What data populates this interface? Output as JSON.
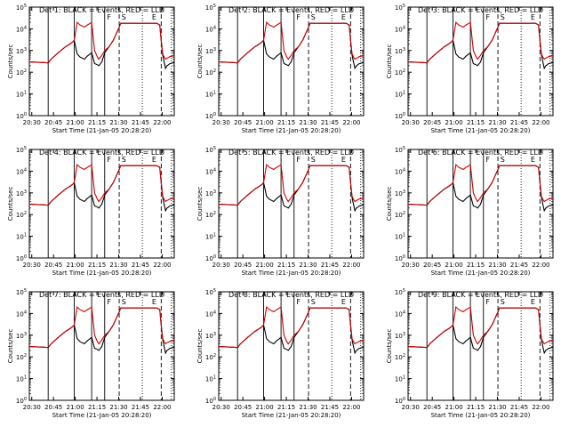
{
  "figure": {
    "plots": [
      {
        "title": "Det 1: BLACK = Events, RED = LLD",
        "row": 0,
        "col": 0
      },
      {
        "title": "Det 2: BLACK = Events, RED = LLD",
        "row": 0,
        "col": 1
      },
      {
        "title": "Det 3: BLACK = Events, RED = LLD",
        "row": 0,
        "col": 2
      },
      {
        "title": "Det 4: BLACK = Events, RED = LLD",
        "row": 1,
        "col": 0
      },
      {
        "title": "Det 5: BLACK = Events, RED = LLD",
        "row": 1,
        "col": 1
      },
      {
        "title": "Det 6: BLACK = Events, RED = LLD",
        "row": 1,
        "col": 2
      },
      {
        "title": "Det 7: BLACK = Events, RED = LLD",
        "row": 2,
        "col": 0
      },
      {
        "title": "Det 8: BLACK = Events, RED = LLD",
        "row": 2,
        "col": 1
      },
      {
        "title": "Det 9: BLACK = Events, RED = LLD",
        "row": 2,
        "col": 2
      }
    ]
  },
  "chart_data": {
    "type": "line",
    "x_axis": {
      "label": "Start Time (21-Jan-05 20:28:20)",
      "tick_labels": [
        "20:30",
        "20:45",
        "21:00",
        "21:15",
        "21:30",
        "21:45",
        "22:00"
      ],
      "tick_minutes": [
        1.67,
        16.67,
        31.67,
        46.67,
        61.67,
        76.67,
        91.67
      ],
      "range_minutes": [
        0,
        100
      ]
    },
    "y_axis": {
      "label": "Counts/sec",
      "scale": "log",
      "tick_exponents": [
        0,
        1,
        2,
        3,
        4,
        5
      ],
      "range": [
        1,
        100000
      ]
    },
    "markers": {
      "solid": [
        13,
        31,
        43,
        52
      ],
      "dashed": [
        62,
        91
      ],
      "dotted": [
        78,
        98
      ],
      "letters": [
        {
          "text": "F",
          "x": 53
        },
        {
          "text": "S",
          "x": 63
        },
        {
          "text": "E",
          "x": 84
        }
      ]
    },
    "series_colors": {
      "events": "#000000",
      "lld": "#cc0000"
    },
    "x": [
      0,
      5,
      10,
      13,
      15,
      20,
      25,
      28,
      30,
      31,
      33,
      35,
      38,
      40,
      42,
      43,
      45,
      47,
      48,
      50,
      52,
      55,
      58,
      60,
      62,
      63,
      65,
      70,
      75,
      80,
      85,
      88,
      90,
      91,
      92,
      93,
      94,
      95,
      96,
      97,
      98,
      99,
      100
    ],
    "series": [
      {
        "role": "events",
        "values": [
          300,
          290,
          280,
          270,
          400,
          800,
          1500,
          2000,
          2500,
          3000,
          700,
          500,
          400,
          550,
          700,
          800,
          250,
          220,
          200,
          300,
          800,
          1500,
          3000,
          6000,
          12000,
          18000,
          18000,
          18000,
          18000,
          18000,
          18000,
          18000,
          15000,
          3000,
          600,
          300,
          150,
          200,
          220,
          250,
          260,
          270,
          280
        ]
      },
      {
        "role": "lld",
        "values": [
          300,
          290,
          280,
          270,
          400,
          800,
          1500,
          2000,
          2500,
          3000,
          20000,
          15000,
          12000,
          15000,
          18000,
          20000,
          1000,
          500,
          400,
          600,
          1000,
          1500,
          3000,
          6000,
          12000,
          18000,
          18000,
          18000,
          18000,
          18000,
          18000,
          18000,
          15000,
          3000,
          700,
          500,
          400,
          450,
          480,
          520,
          540,
          560,
          600
        ]
      }
    ]
  }
}
